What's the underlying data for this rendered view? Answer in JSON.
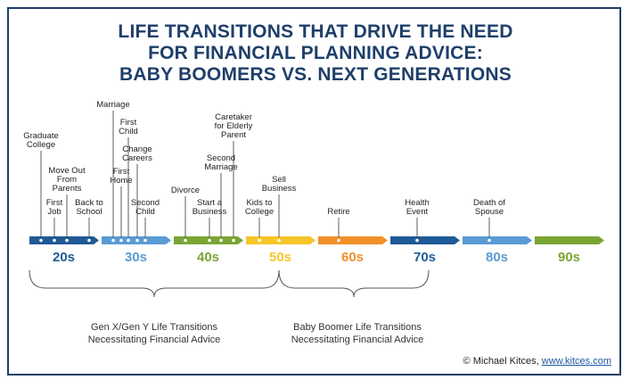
{
  "title_lines": [
    "LIFE TRANSITIONS THAT DRIVE THE NEED",
    "FOR FINANCIAL PLANNING ADVICE:",
    "BABY BOOMERS VS. NEXT GENERATIONS"
  ],
  "decades": [
    {
      "label": "20s",
      "color": "#1f5a96"
    },
    {
      "label": "30s",
      "color": "#5a9bd4"
    },
    {
      "label": "40s",
      "color": "#7aa534"
    },
    {
      "label": "50s",
      "color": "#f7c52b"
    },
    {
      "label": "60s",
      "color": "#f2902a"
    },
    {
      "label": "70s",
      "color": "#1f5a96"
    },
    {
      "label": "80s",
      "color": "#5a9bd4"
    },
    {
      "label": "90s",
      "color": "#7aa534"
    }
  ],
  "events": [
    {
      "lines": [
        "Graduate",
        "College"
      ]
    },
    {
      "lines": [
        "First",
        "Job"
      ]
    },
    {
      "lines": [
        "Move Out",
        "From",
        "Parents"
      ]
    },
    {
      "lines": [
        "Back to",
        "School"
      ]
    },
    {
      "lines": [
        "Marriage"
      ]
    },
    {
      "lines": [
        "First",
        "Home"
      ]
    },
    {
      "lines": [
        "First",
        "Child"
      ]
    },
    {
      "lines": [
        "Change",
        "Careers"
      ]
    },
    {
      "lines": [
        "Second",
        "Child"
      ]
    },
    {
      "lines": [
        "Divorce"
      ]
    },
    {
      "lines": [
        "Start a",
        "Business"
      ]
    },
    {
      "lines": [
        "Second",
        "Marriage"
      ]
    },
    {
      "lines": [
        "Caretaker",
        "for Elderly",
        "Parent"
      ]
    },
    {
      "lines": [
        "Kids to",
        "College"
      ]
    },
    {
      "lines": [
        "Sell",
        "Business"
      ]
    },
    {
      "lines": [
        "Retire"
      ]
    },
    {
      "lines": [
        "Health",
        "Event"
      ]
    },
    {
      "lines": [
        "Death of",
        "Spouse"
      ]
    }
  ],
  "groups": [
    {
      "lines": [
        "Gen X/Gen Y Life Transitions",
        "Necessitating Financial Advice"
      ]
    },
    {
      "lines": [
        "Baby Boomer Life Transitions",
        "Necessitating Financial Advice"
      ]
    }
  ],
  "credit": {
    "text": "© Michael Kitces, ",
    "link": "www.kitces.com"
  }
}
